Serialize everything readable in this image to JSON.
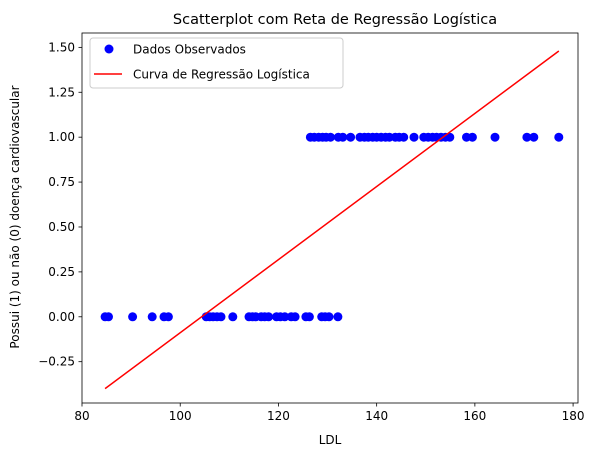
{
  "chart_data": {
    "type": "scatter",
    "title": "Scatterplot com Reta de Regressão Logística",
    "xlabel": "LDL",
    "ylabel": "Possui (1) ou não (0) doença cardiovascular",
    "xlim": [
      80,
      181
    ],
    "ylim": [
      -0.48,
      1.58
    ],
    "xticks": [
      80,
      100,
      120,
      140,
      160,
      180
    ],
    "yticks": [
      -0.25,
      0.0,
      0.25,
      0.5,
      0.75,
      1.0,
      1.25,
      1.5
    ],
    "ytick_labels": [
      "−0.25",
      "0.00",
      "0.25",
      "0.50",
      "0.75",
      "1.00",
      "1.25",
      "1.50"
    ],
    "grid": false,
    "legend_position": "top-left",
    "series": [
      {
        "name": "Dados Observados",
        "kind": "scatter",
        "color": "#0000ff",
        "points": [
          [
            84.7,
            0
          ],
          [
            85.4,
            0
          ],
          [
            90.3,
            0
          ],
          [
            94.3,
            0
          ],
          [
            96.7,
            0
          ],
          [
            97.6,
            0
          ],
          [
            105.3,
            0
          ],
          [
            106.0,
            0
          ],
          [
            106.7,
            0
          ],
          [
            107.5,
            0
          ],
          [
            108.3,
            0
          ],
          [
            110.7,
            0
          ],
          [
            114.0,
            0
          ],
          [
            114.7,
            0
          ],
          [
            115.4,
            0
          ],
          [
            116.5,
            0
          ],
          [
            117.2,
            0
          ],
          [
            118.0,
            0
          ],
          [
            119.6,
            0
          ],
          [
            120.4,
            0
          ],
          [
            121.3,
            0
          ],
          [
            122.6,
            0
          ],
          [
            123.4,
            0
          ],
          [
            125.6,
            0
          ],
          [
            126.3,
            0
          ],
          [
            128.8,
            0
          ],
          [
            129.5,
            0
          ],
          [
            130.3,
            0
          ],
          [
            132.1,
            0
          ],
          [
            126.5,
            1
          ],
          [
            127.3,
            1
          ],
          [
            128.2,
            1
          ],
          [
            129.0,
            1
          ],
          [
            129.7,
            1
          ],
          [
            130.6,
            1
          ],
          [
            132.2,
            1
          ],
          [
            133.1,
            1
          ],
          [
            134.7,
            1
          ],
          [
            136.6,
            1
          ],
          [
            137.5,
            1
          ],
          [
            138.3,
            1
          ],
          [
            139.2,
            1
          ],
          [
            140.0,
            1
          ],
          [
            140.9,
            1
          ],
          [
            141.8,
            1
          ],
          [
            142.6,
            1
          ],
          [
            143.8,
            1
          ],
          [
            144.6,
            1
          ],
          [
            145.5,
            1
          ],
          [
            147.6,
            1
          ],
          [
            149.6,
            1
          ],
          [
            150.5,
            1
          ],
          [
            151.4,
            1
          ],
          [
            152.2,
            1
          ],
          [
            153.1,
            1
          ],
          [
            154.0,
            1
          ],
          [
            154.9,
            1
          ],
          [
            158.3,
            1
          ],
          [
            159.5,
            1
          ],
          [
            164.1,
            1
          ],
          [
            170.6,
            1
          ],
          [
            172.0,
            1
          ],
          [
            177.1,
            1
          ]
        ]
      },
      {
        "name": "Curva de Regressão Logística",
        "kind": "line",
        "color": "#ff0000",
        "points": [
          [
            84.7,
            -0.4
          ],
          [
            177.1,
            1.48
          ]
        ]
      }
    ]
  }
}
